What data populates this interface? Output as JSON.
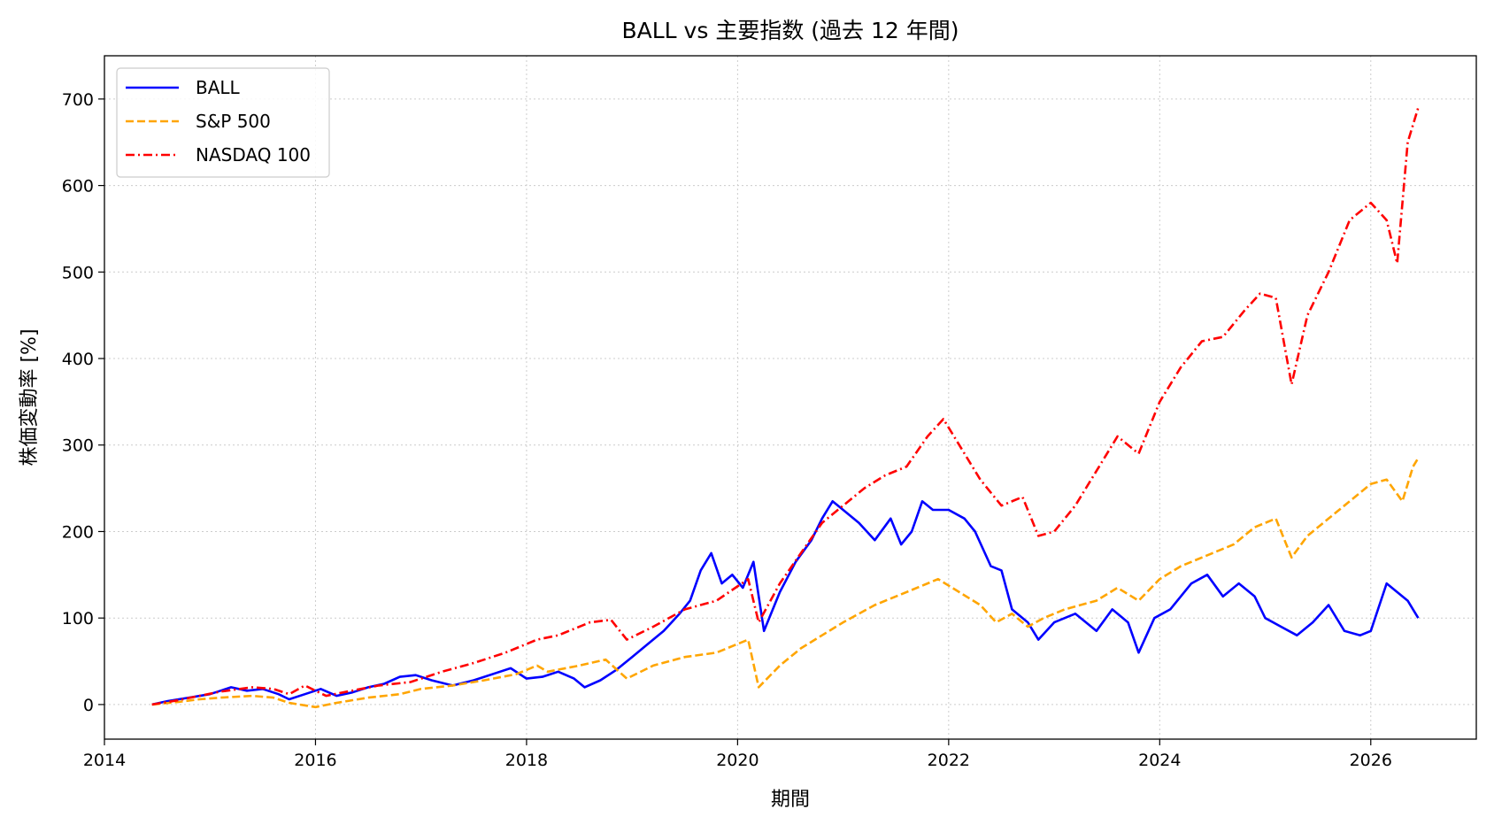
{
  "chart_data": {
    "type": "line",
    "title": "BALL vs 主要指数 (過去 12 年間)",
    "xlabel": "期間",
    "ylabel": "株価変動率 [%]",
    "xlim": [
      2014.0,
      2027.0
    ],
    "ylim": [
      -40,
      750
    ],
    "x_ticks": [
      2014,
      2016,
      2018,
      2020,
      2022,
      2024,
      2026
    ],
    "y_ticks": [
      0,
      100,
      200,
      300,
      400,
      500,
      600,
      700
    ],
    "grid": true,
    "legend_position": "top-left",
    "series": [
      {
        "name": "BALL",
        "color": "#0000ff",
        "style": "solid",
        "points": [
          [
            2014.45,
            0
          ],
          [
            2014.6,
            4
          ],
          [
            2014.8,
            8
          ],
          [
            2015.0,
            12
          ],
          [
            2015.1,
            16
          ],
          [
            2015.2,
            20
          ],
          [
            2015.35,
            16
          ],
          [
            2015.5,
            18
          ],
          [
            2015.65,
            12
          ],
          [
            2015.75,
            6
          ],
          [
            2015.9,
            12
          ],
          [
            2016.05,
            18
          ],
          [
            2016.2,
            10
          ],
          [
            2016.35,
            14
          ],
          [
            2016.5,
            20
          ],
          [
            2016.65,
            24
          ],
          [
            2016.8,
            32
          ],
          [
            2016.95,
            34
          ],
          [
            2017.1,
            28
          ],
          [
            2017.3,
            22
          ],
          [
            2017.5,
            28
          ],
          [
            2017.7,
            36
          ],
          [
            2017.85,
            42
          ],
          [
            2018.0,
            30
          ],
          [
            2018.15,
            32
          ],
          [
            2018.3,
            38
          ],
          [
            2018.45,
            30
          ],
          [
            2018.55,
            20
          ],
          [
            2018.7,
            28
          ],
          [
            2018.85,
            40
          ],
          [
            2019.0,
            55
          ],
          [
            2019.15,
            70
          ],
          [
            2019.3,
            85
          ],
          [
            2019.45,
            105
          ],
          [
            2019.55,
            120
          ],
          [
            2019.65,
            155
          ],
          [
            2019.75,
            175
          ],
          [
            2019.85,
            140
          ],
          [
            2019.95,
            150
          ],
          [
            2020.05,
            135
          ],
          [
            2020.15,
            165
          ],
          [
            2020.25,
            85
          ],
          [
            2020.4,
            130
          ],
          [
            2020.55,
            165
          ],
          [
            2020.7,
            190
          ],
          [
            2020.8,
            215
          ],
          [
            2020.9,
            235
          ],
          [
            2021.0,
            225
          ],
          [
            2021.15,
            210
          ],
          [
            2021.3,
            190
          ],
          [
            2021.45,
            215
          ],
          [
            2021.55,
            185
          ],
          [
            2021.65,
            200
          ],
          [
            2021.75,
            235
          ],
          [
            2021.85,
            225
          ],
          [
            2022.0,
            225
          ],
          [
            2022.15,
            215
          ],
          [
            2022.25,
            200
          ],
          [
            2022.4,
            160
          ],
          [
            2022.5,
            155
          ],
          [
            2022.6,
            110
          ],
          [
            2022.75,
            95
          ],
          [
            2022.85,
            75
          ],
          [
            2023.0,
            95
          ],
          [
            2023.2,
            105
          ],
          [
            2023.4,
            85
          ],
          [
            2023.55,
            110
          ],
          [
            2023.7,
            95
          ],
          [
            2023.8,
            60
          ],
          [
            2023.95,
            100
          ],
          [
            2024.1,
            110
          ],
          [
            2024.3,
            140
          ],
          [
            2024.45,
            150
          ],
          [
            2024.6,
            125
          ],
          [
            2024.75,
            140
          ],
          [
            2024.9,
            125
          ],
          [
            2025.0,
            100
          ],
          [
            2025.15,
            90
          ],
          [
            2025.3,
            80
          ],
          [
            2025.45,
            95
          ],
          [
            2025.6,
            115
          ],
          [
            2025.75,
            85
          ],
          [
            2025.9,
            80
          ],
          [
            2026.0,
            85
          ],
          [
            2026.15,
            140
          ],
          [
            2026.25,
            130
          ],
          [
            2026.35,
            120
          ],
          [
            2026.45,
            100
          ]
        ]
      },
      {
        "name": "S&P 500",
        "color": "#ffa500",
        "style": "dashed",
        "points": [
          [
            2014.45,
            0
          ],
          [
            2014.7,
            3
          ],
          [
            2014.9,
            6
          ],
          [
            2015.1,
            8
          ],
          [
            2015.4,
            10
          ],
          [
            2015.6,
            8
          ],
          [
            2015.75,
            2
          ],
          [
            2016.0,
            -3
          ],
          [
            2016.2,
            2
          ],
          [
            2016.5,
            8
          ],
          [
            2016.8,
            12
          ],
          [
            2017.0,
            18
          ],
          [
            2017.3,
            22
          ],
          [
            2017.6,
            28
          ],
          [
            2017.9,
            35
          ],
          [
            2018.1,
            45
          ],
          [
            2018.2,
            38
          ],
          [
            2018.5,
            45
          ],
          [
            2018.75,
            52
          ],
          [
            2018.95,
            30
          ],
          [
            2019.2,
            45
          ],
          [
            2019.5,
            55
          ],
          [
            2019.8,
            60
          ],
          [
            2020.1,
            75
          ],
          [
            2020.2,
            20
          ],
          [
            2020.4,
            45
          ],
          [
            2020.6,
            65
          ],
          [
            2020.8,
            80
          ],
          [
            2021.0,
            95
          ],
          [
            2021.3,
            115
          ],
          [
            2021.6,
            130
          ],
          [
            2021.9,
            145
          ],
          [
            2022.1,
            130
          ],
          [
            2022.3,
            115
          ],
          [
            2022.45,
            95
          ],
          [
            2022.6,
            105
          ],
          [
            2022.75,
            90
          ],
          [
            2022.9,
            100
          ],
          [
            2023.1,
            110
          ],
          [
            2023.4,
            120
          ],
          [
            2023.6,
            135
          ],
          [
            2023.8,
            120
          ],
          [
            2024.0,
            145
          ],
          [
            2024.2,
            160
          ],
          [
            2024.5,
            175
          ],
          [
            2024.7,
            185
          ],
          [
            2024.9,
            205
          ],
          [
            2025.1,
            215
          ],
          [
            2025.25,
            170
          ],
          [
            2025.4,
            195
          ],
          [
            2025.6,
            215
          ],
          [
            2025.8,
            235
          ],
          [
            2026.0,
            255
          ],
          [
            2026.15,
            260
          ],
          [
            2026.3,
            235
          ],
          [
            2026.4,
            275
          ],
          [
            2026.45,
            285
          ]
        ]
      },
      {
        "name": "NASDAQ 100",
        "color": "#ff0000",
        "style": "dashdot",
        "points": [
          [
            2014.45,
            0
          ],
          [
            2014.7,
            5
          ],
          [
            2014.9,
            10
          ],
          [
            2015.1,
            15
          ],
          [
            2015.4,
            20
          ],
          [
            2015.6,
            18
          ],
          [
            2015.75,
            12
          ],
          [
            2015.9,
            22
          ],
          [
            2016.1,
            10
          ],
          [
            2016.3,
            15
          ],
          [
            2016.6,
            22
          ],
          [
            2016.9,
            26
          ],
          [
            2017.2,
            38
          ],
          [
            2017.5,
            48
          ],
          [
            2017.8,
            60
          ],
          [
            2018.1,
            75
          ],
          [
            2018.3,
            80
          ],
          [
            2018.6,
            95
          ],
          [
            2018.8,
            98
          ],
          [
            2018.95,
            75
          ],
          [
            2019.2,
            90
          ],
          [
            2019.5,
            110
          ],
          [
            2019.8,
            120
          ],
          [
            2020.1,
            145
          ],
          [
            2020.2,
            95
          ],
          [
            2020.4,
            140
          ],
          [
            2020.6,
            175
          ],
          [
            2020.8,
            210
          ],
          [
            2021.0,
            230
          ],
          [
            2021.2,
            250
          ],
          [
            2021.4,
            265
          ],
          [
            2021.6,
            275
          ],
          [
            2021.8,
            310
          ],
          [
            2021.95,
            330
          ],
          [
            2022.1,
            300
          ],
          [
            2022.3,
            260
          ],
          [
            2022.5,
            230
          ],
          [
            2022.7,
            240
          ],
          [
            2022.85,
            195
          ],
          [
            2023.0,
            200
          ],
          [
            2023.2,
            230
          ],
          [
            2023.4,
            270
          ],
          [
            2023.6,
            310
          ],
          [
            2023.8,
            290
          ],
          [
            2024.0,
            350
          ],
          [
            2024.2,
            390
          ],
          [
            2024.4,
            420
          ],
          [
            2024.6,
            425
          ],
          [
            2024.8,
            455
          ],
          [
            2024.95,
            475
          ],
          [
            2025.1,
            470
          ],
          [
            2025.25,
            370
          ],
          [
            2025.4,
            450
          ],
          [
            2025.6,
            500
          ],
          [
            2025.8,
            560
          ],
          [
            2026.0,
            580
          ],
          [
            2026.15,
            560
          ],
          [
            2026.25,
            510
          ],
          [
            2026.35,
            650
          ],
          [
            2026.45,
            690
          ]
        ]
      }
    ]
  }
}
